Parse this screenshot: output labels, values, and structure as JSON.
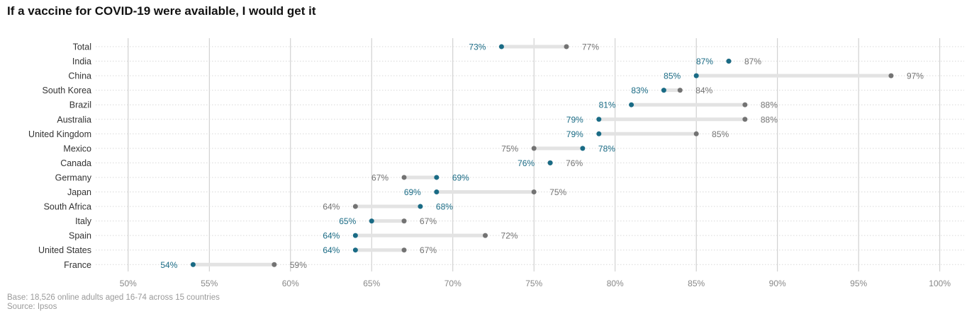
{
  "title": "If a vaccine for COVID-19 were available, I would get it",
  "footnote": {
    "base": "Base: 18,526 online adults aged 16-74 across 15 countries",
    "source": "Source: Ipsos"
  },
  "colors": {
    "series_a": "#1a6b85",
    "series_b": "#737373",
    "connector": "#e3e3e3",
    "grid": "#c8c8c8",
    "row_dots": "#d9d9d9",
    "tick_label": "#888888",
    "category_label": "#333333"
  },
  "chart_data": {
    "type": "dumbbell",
    "title": "If a vaccine for COVID-19 were available, I would get it",
    "xlim": [
      48,
      101.5
    ],
    "x_ticks": [
      50,
      55,
      60,
      65,
      70,
      75,
      80,
      85,
      90,
      95,
      100
    ],
    "x_tick_labels": [
      "50%",
      "55%",
      "60%",
      "65%",
      "70%",
      "75%",
      "80%",
      "85%",
      "90%",
      "95%",
      "100%"
    ],
    "grid": "vertical",
    "categories": [
      "Total",
      "India",
      "China",
      "South Korea",
      "Brazil",
      "Australia",
      "United Kingdom",
      "Mexico",
      "Canada",
      "Germany",
      "Japan",
      "South Africa",
      "Italy",
      "Spain",
      "United States",
      "France"
    ],
    "series": [
      {
        "values": [
          73,
          87,
          85,
          83,
          81,
          79,
          79,
          78,
          76,
          69,
          69,
          68,
          65,
          64,
          64,
          54
        ],
        "labels": [
          "73%",
          "87%",
          "85%",
          "83%",
          "81%",
          "79%",
          "79%",
          "78%",
          "76%",
          "69%",
          "69%",
          "68%",
          "65%",
          "64%",
          "64%",
          "54%"
        ]
      },
      {
        "values": [
          77,
          87,
          97,
          84,
          88,
          88,
          85,
          75,
          76,
          67,
          75,
          64,
          67,
          72,
          67,
          59
        ],
        "labels": [
          "77%",
          "87%",
          "97%",
          "84%",
          "88%",
          "88%",
          "85%",
          "75%",
          "76%",
          "67%",
          "75%",
          "64%",
          "67%",
          "72%",
          "67%",
          "59%"
        ]
      }
    ]
  }
}
